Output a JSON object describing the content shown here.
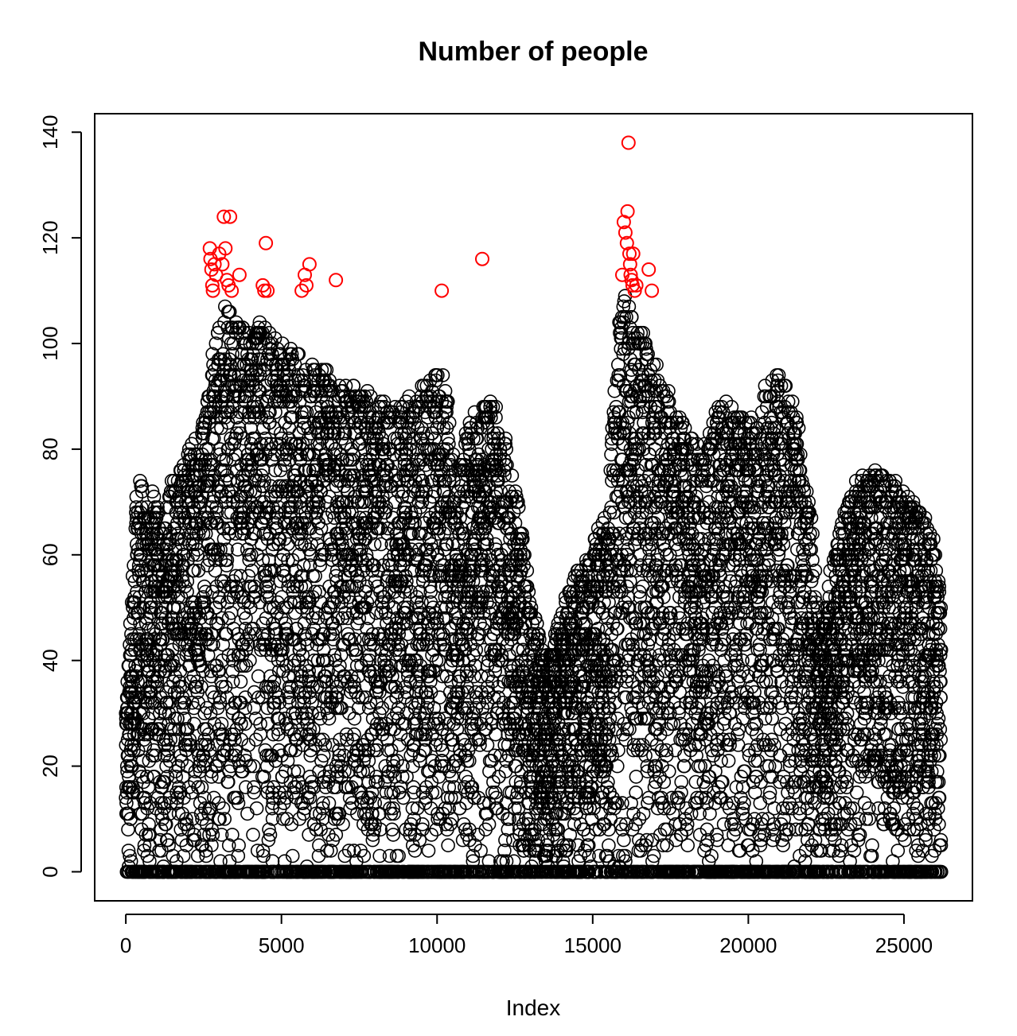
{
  "chart_data": {
    "type": "scatter",
    "title": "Number of people",
    "xlabel": "Index",
    "ylabel": "",
    "xlim": [
      -1000,
      27200
    ],
    "ylim": [
      -5.5,
      143.5
    ],
    "x_ticks": [
      0,
      5000,
      10000,
      15000,
      20000,
      25000
    ],
    "x_tick_labels": [
      "0",
      "5000",
      "10000",
      "15000",
      "20000",
      "25000"
    ],
    "y_ticks": [
      0,
      20,
      40,
      60,
      80,
      100,
      120,
      140
    ],
    "y_tick_labels": [
      "0",
      "20",
      "40",
      "60",
      "80",
      "100",
      "120",
      "140"
    ],
    "grid": false,
    "marker": "open-circle",
    "n_points": 26200,
    "density_envelope": {
      "description_of_upper_envelope": "approximate maximum value per index region",
      "x": [
        0,
        200,
        400,
        600,
        900,
        1200,
        1500,
        2000,
        2500,
        2800,
        3200,
        3600,
        4000,
        4500,
        5000,
        5500,
        6000,
        6500,
        7000,
        7500,
        8000,
        8500,
        9000,
        9500,
        10000,
        10300,
        10600,
        11000,
        11400,
        11800,
        12200,
        12600,
        13000,
        13300,
        13600,
        14000,
        14500,
        15000,
        15500,
        15800,
        16100,
        16400,
        16800,
        17200,
        17600,
        18000,
        18500,
        19000,
        19500,
        20000,
        20500,
        21000,
        21500,
        22000,
        22300,
        22600,
        23000,
        23500,
        24000,
        24500,
        25000,
        25500,
        26000,
        26200
      ],
      "y": [
        30,
        55,
        78,
        70,
        72,
        68,
        76,
        80,
        85,
        100,
        108,
        105,
        103,
        105,
        100,
        98,
        96,
        95,
        93,
        92,
        90,
        88,
        90,
        92,
        95,
        95,
        75,
        85,
        88,
        90,
        82,
        70,
        52,
        45,
        40,
        50,
        58,
        62,
        70,
        105,
        110,
        105,
        100,
        95,
        88,
        85,
        80,
        88,
        90,
        85,
        92,
        95,
        88,
        70,
        45,
        58,
        66,
        75,
        76,
        75,
        72,
        70,
        62,
        50
      ]
    },
    "highlighted_points": {
      "color": "#ff0000",
      "x": [
        2700,
        2720,
        2750,
        2780,
        2800,
        2850,
        2900,
        3000,
        3100,
        3150,
        3200,
        3250,
        3300,
        3350,
        3400,
        3650,
        4400,
        4450,
        4500,
        4550,
        5650,
        5750,
        5800,
        5900,
        6750,
        10150,
        11450,
        15950,
        16000,
        16050,
        16100,
        16120,
        16150,
        16180,
        16200,
        16220,
        16250,
        16280,
        16300,
        16350,
        16400,
        16800,
        16900
      ],
      "y": [
        118,
        116,
        114,
        111,
        110,
        115,
        113,
        117,
        115,
        124,
        118,
        112,
        111,
        124,
        110,
        113,
        111,
        110,
        119,
        110,
        110,
        113,
        111,
        115,
        112,
        110,
        116,
        113,
        123,
        121,
        119,
        125,
        138,
        117,
        115,
        113,
        112,
        111,
        117,
        110,
        111,
        114,
        110
      ]
    },
    "highlight_threshold": 109.5,
    "base_color": "#000000"
  }
}
